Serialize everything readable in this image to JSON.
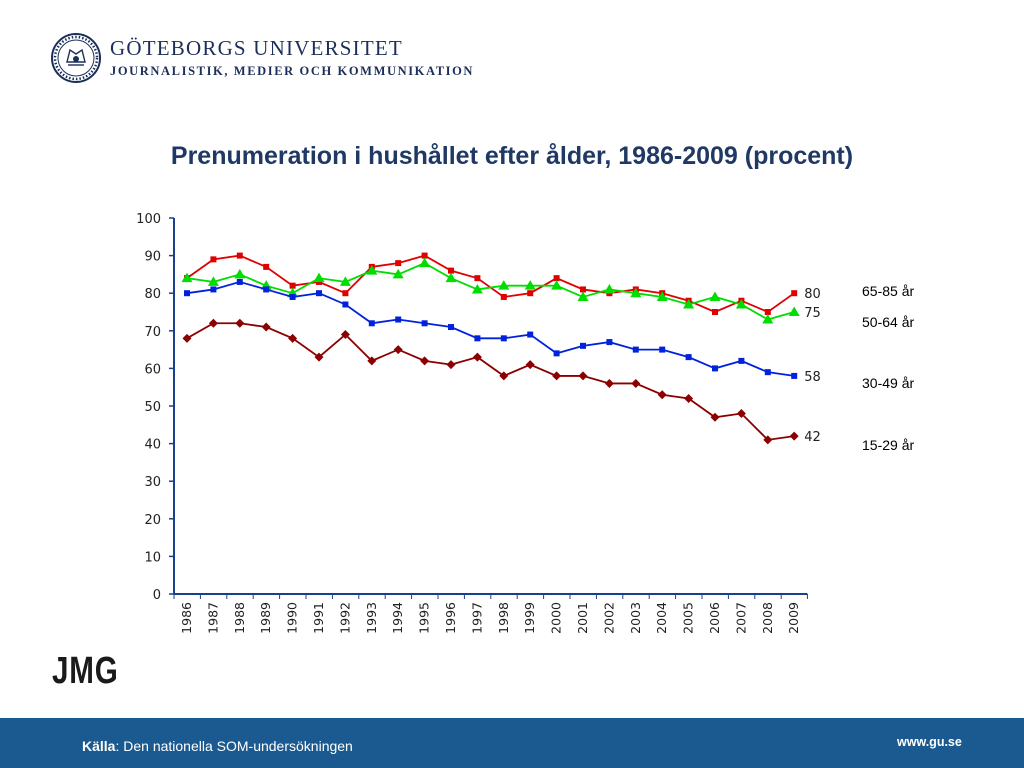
{
  "header": {
    "university": "GÖTEBORGS UNIVERSITET",
    "department": "JOURNALISTIK, MEDIER OCH KOMMUNIKATION"
  },
  "logo": {
    "text": "JMG"
  },
  "footer": {
    "source_label": "Källa",
    "source_text": ": Den nationella SOM-undersökningen",
    "website": "www.gu.se"
  },
  "colors": {
    "title": "#1f3864",
    "footer": "#1b5a90",
    "axis": "#1a3f8f"
  },
  "chart_data": {
    "type": "line",
    "title": "Prenumeration i hushållet efter ålder, 1986-2009 (procent)",
    "xlabel": "",
    "ylabel": "",
    "ylim": [
      0,
      100
    ],
    "yticks": [
      0,
      10,
      20,
      30,
      40,
      50,
      60,
      70,
      80,
      90,
      100
    ],
    "x": [
      "1986",
      "1987",
      "1988",
      "1989",
      "1990",
      "1991",
      "1992",
      "1993",
      "1994",
      "1995",
      "1996",
      "1997",
      "1998",
      "1999",
      "2000",
      "2001",
      "2002",
      "2003",
      "2004",
      "2005",
      "2006",
      "2007",
      "2008",
      "2009"
    ],
    "grid": false,
    "series": [
      {
        "name": "65-85 år",
        "color": "#e00000",
        "marker": "square",
        "values": [
          84,
          89,
          90,
          87,
          82,
          83,
          80,
          87,
          88,
          90,
          86,
          84,
          79,
          80,
          84,
          81,
          80,
          81,
          80,
          78,
          75,
          78,
          75,
          80
        ],
        "end_label": "80"
      },
      {
        "name": "50-64 år",
        "color": "#00dd00",
        "marker": "triangle",
        "values": [
          84,
          83,
          85,
          82,
          80,
          84,
          83,
          86,
          85,
          88,
          84,
          81,
          82,
          82,
          82,
          79,
          81,
          80,
          79,
          77,
          79,
          77,
          73,
          75
        ],
        "end_label": "75"
      },
      {
        "name": "30-49 år",
        "color": "#0022dd",
        "marker": "square",
        "values": [
          80,
          81,
          83,
          81,
          79,
          80,
          77,
          72,
          73,
          72,
          71,
          68,
          68,
          69,
          64,
          66,
          67,
          65,
          65,
          63,
          60,
          62,
          59,
          58
        ],
        "end_label": "58"
      },
      {
        "name": "15-29 år",
        "color": "#8b0000",
        "marker": "diamond",
        "values": [
          68,
          72,
          72,
          71,
          68,
          63,
          69,
          62,
          65,
          62,
          61,
          63,
          58,
          61,
          58,
          58,
          56,
          56,
          53,
          52,
          47,
          48,
          41,
          42
        ],
        "end_label": "42"
      }
    ]
  }
}
